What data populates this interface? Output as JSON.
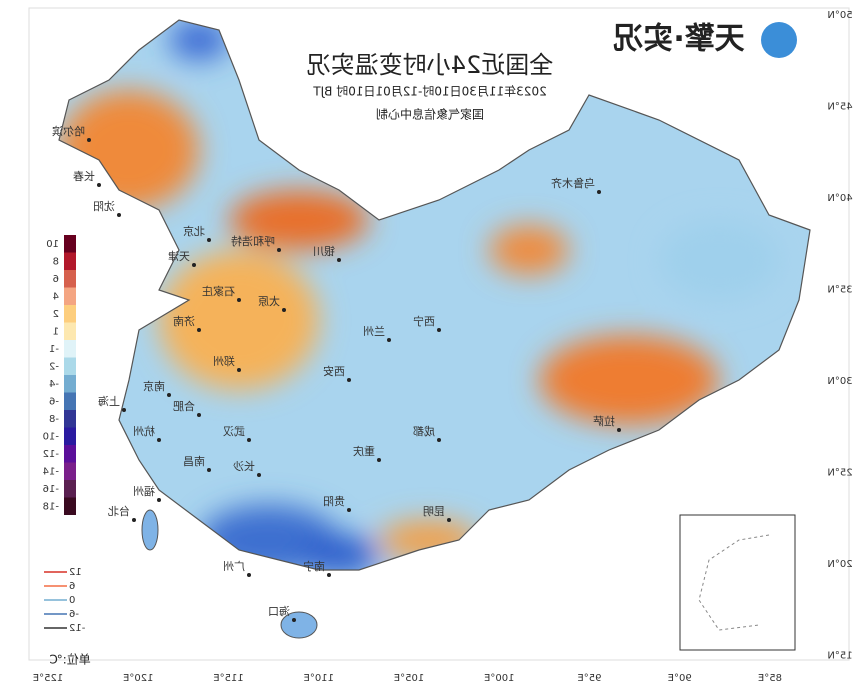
{
  "header": {
    "logo": "天擎·实况",
    "title": "全国近24小时变温实况",
    "subtitle": "2023年11月30日10时-12月01日10时 BJT",
    "source": "国家气象信息中心制"
  },
  "color_legend": {
    "labels": [
      "10",
      "8",
      "6",
      "4",
      "2",
      "1",
      "-1",
      "-2",
      "-4",
      "-6",
      "-8",
      "-10",
      "-12",
      "-14",
      "-16",
      "-18"
    ]
  },
  "contour_legend": {
    "labels": [
      "12",
      "6",
      "0",
      "-6",
      "-12"
    ]
  },
  "unit": "单位:℃",
  "lat_labels": [
    "50°N",
    "45°N",
    "40°N",
    "35°N",
    "30°N",
    "25°N",
    "20°N",
    "15°N"
  ],
  "lon_labels": [
    "85°E",
    "90°E",
    "95°E",
    "100°E",
    "105°E",
    "110°E",
    "115°E",
    "120°E",
    "125°E"
  ],
  "cities": [
    {
      "name": "乌鲁木齐"
    },
    {
      "name": "拉萨"
    },
    {
      "name": "西宁"
    },
    {
      "name": "兰州"
    },
    {
      "name": "银川"
    },
    {
      "name": "呼和浩特"
    },
    {
      "name": "北京"
    },
    {
      "name": "天津"
    },
    {
      "name": "石家庄"
    },
    {
      "name": "太原"
    },
    {
      "name": "济南"
    },
    {
      "name": "郑州"
    },
    {
      "name": "西安"
    },
    {
      "name": "成都"
    },
    {
      "name": "重庆"
    },
    {
      "name": "武汉"
    },
    {
      "name": "合肥"
    },
    {
      "name": "南京"
    },
    {
      "name": "上海"
    },
    {
      "name": "杭州"
    },
    {
      "name": "南昌"
    },
    {
      "name": "长沙"
    },
    {
      "name": "贵阳"
    },
    {
      "name": "昆明"
    },
    {
      "name": "南宁"
    },
    {
      "name": "广州"
    },
    {
      "name": "福州"
    },
    {
      "name": "台北"
    },
    {
      "name": "海口"
    },
    {
      "name": "沈阳"
    },
    {
      "name": "长春"
    },
    {
      "name": "哈尔滨"
    }
  ]
}
